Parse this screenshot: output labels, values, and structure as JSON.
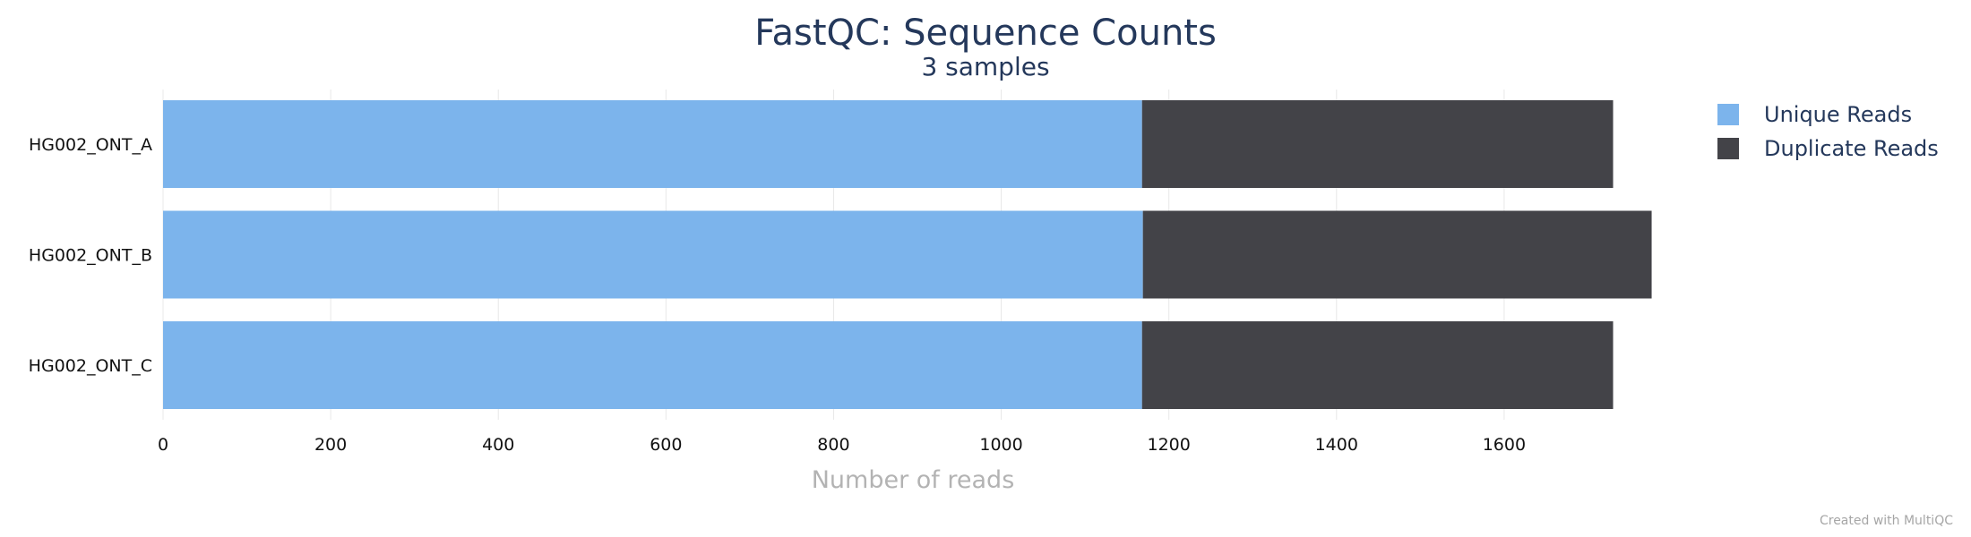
{
  "chart_data": {
    "type": "bar",
    "orientation": "horizontal",
    "stacked": true,
    "title": "FastQC: Sequence Counts",
    "subtitle": "3 samples",
    "xlabel": "Number of reads",
    "ylabel": "",
    "categories": [
      "HG002_ONT_A",
      "HG002_ONT_B",
      "HG002_ONT_C"
    ],
    "series": [
      {
        "name": "Unique Reads",
        "color": "#7cb4ec",
        "values": [
          1168,
          1169,
          1168
        ]
      },
      {
        "name": "Duplicate Reads",
        "color": "#434348",
        "values": [
          562,
          607,
          562
        ]
      }
    ],
    "xlim": [
      0,
      1800
    ],
    "xticks": [
      0,
      200,
      400,
      600,
      800,
      1000,
      1200,
      1400,
      1600
    ],
    "grid": true,
    "legend_position": "top-right"
  },
  "footer": {
    "credit": "Created with MultiQC"
  }
}
